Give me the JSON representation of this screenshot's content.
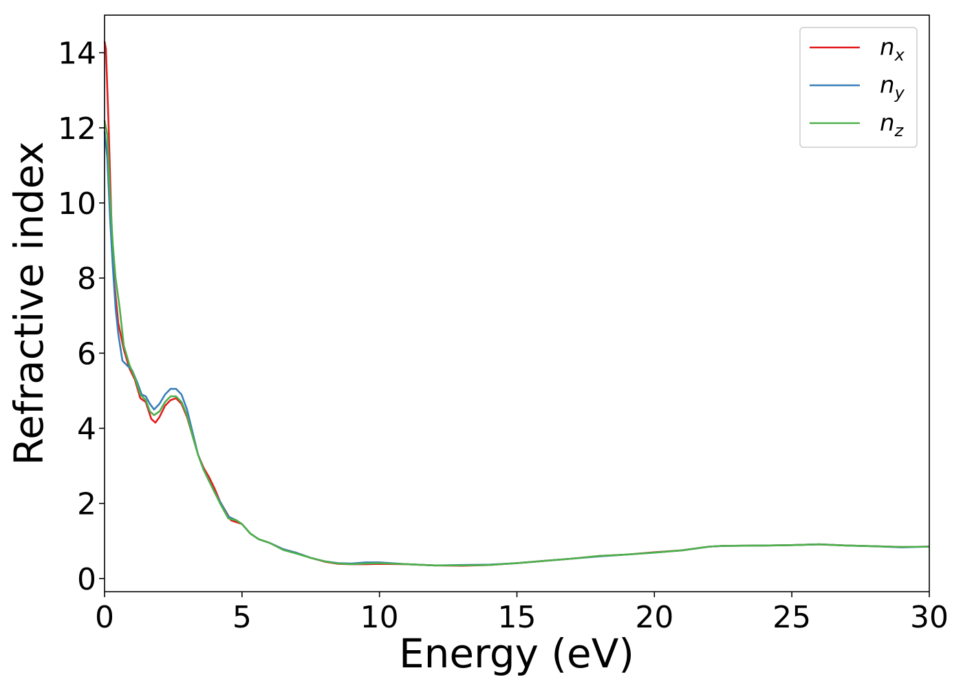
{
  "chart_data": {
    "type": "line",
    "title": "",
    "xlabel": "Energy (eV)",
    "ylabel": "Refractive index",
    "xlim": [
      0,
      30
    ],
    "ylim": [
      -0.35,
      15
    ],
    "xticks": [
      0,
      5,
      10,
      15,
      20,
      25,
      30
    ],
    "yticks": [
      0,
      2,
      4,
      6,
      8,
      10,
      12,
      14
    ],
    "grid": false,
    "legend_position": "top-right",
    "series": [
      {
        "name": "n",
        "subscript": "x",
        "color": "#e41a1c",
        "points": [
          [
            0,
            14.3
          ],
          [
            0.05,
            14.1
          ],
          [
            0.15,
            12.0
          ],
          [
            0.25,
            9.5
          ],
          [
            0.35,
            7.9
          ],
          [
            0.5,
            6.8
          ],
          [
            0.7,
            6.1
          ],
          [
            0.9,
            5.6
          ],
          [
            1.1,
            5.3
          ],
          [
            1.3,
            4.8
          ],
          [
            1.5,
            4.7
          ],
          [
            1.7,
            4.25
          ],
          [
            1.85,
            4.15
          ],
          [
            2.0,
            4.3
          ],
          [
            2.2,
            4.6
          ],
          [
            2.4,
            4.75
          ],
          [
            2.6,
            4.8
          ],
          [
            2.8,
            4.65
          ],
          [
            3.0,
            4.3
          ],
          [
            3.2,
            3.8
          ],
          [
            3.4,
            3.3
          ],
          [
            3.6,
            2.95
          ],
          [
            3.8,
            2.7
          ],
          [
            4.0,
            2.4
          ],
          [
            4.2,
            2.05
          ],
          [
            4.4,
            1.8
          ],
          [
            4.6,
            1.55
          ],
          [
            4.8,
            1.5
          ],
          [
            5.0,
            1.45
          ],
          [
            5.3,
            1.2
          ],
          [
            5.6,
            1.05
          ],
          [
            6.0,
            0.95
          ],
          [
            6.5,
            0.78
          ],
          [
            7.0,
            0.68
          ],
          [
            7.5,
            0.55
          ],
          [
            8.0,
            0.45
          ],
          [
            8.5,
            0.39
          ],
          [
            9.0,
            0.38
          ],
          [
            9.5,
            0.38
          ],
          [
            10.0,
            0.39
          ],
          [
            11.0,
            0.38
          ],
          [
            12.0,
            0.35
          ],
          [
            13.0,
            0.34
          ],
          [
            14.0,
            0.36
          ],
          [
            15.0,
            0.41
          ],
          [
            16.0,
            0.47
          ],
          [
            17.0,
            0.53
          ],
          [
            18.0,
            0.6
          ],
          [
            19.0,
            0.64
          ],
          [
            20.0,
            0.7
          ],
          [
            21.0,
            0.75
          ],
          [
            22.0,
            0.85
          ],
          [
            22.5,
            0.87
          ],
          [
            24.0,
            0.88
          ],
          [
            25.0,
            0.89
          ],
          [
            26.0,
            0.91
          ],
          [
            27.0,
            0.88
          ],
          [
            28.0,
            0.86
          ],
          [
            29.0,
            0.84
          ],
          [
            30.0,
            0.85
          ]
        ]
      },
      {
        "name": "n",
        "subscript": "y",
        "color": "#377eb8",
        "points": [
          [
            0,
            11.9
          ],
          [
            0.1,
            11.2
          ],
          [
            0.2,
            9.6
          ],
          [
            0.3,
            8.3
          ],
          [
            0.4,
            7.2
          ],
          [
            0.5,
            6.5
          ],
          [
            0.65,
            5.8
          ],
          [
            0.85,
            5.65
          ],
          [
            1.0,
            5.55
          ],
          [
            1.2,
            5.2
          ],
          [
            1.35,
            4.9
          ],
          [
            1.5,
            4.85
          ],
          [
            1.65,
            4.65
          ],
          [
            1.8,
            4.5
          ],
          [
            2.0,
            4.65
          ],
          [
            2.2,
            4.9
          ],
          [
            2.4,
            5.05
          ],
          [
            2.6,
            5.05
          ],
          [
            2.8,
            4.9
          ],
          [
            3.0,
            4.5
          ],
          [
            3.2,
            3.9
          ],
          [
            3.4,
            3.3
          ],
          [
            3.6,
            2.9
          ],
          [
            3.8,
            2.6
          ],
          [
            4.0,
            2.3
          ],
          [
            4.2,
            2.05
          ],
          [
            4.5,
            1.65
          ],
          [
            4.8,
            1.55
          ],
          [
            5.0,
            1.45
          ],
          [
            5.3,
            1.2
          ],
          [
            5.6,
            1.05
          ],
          [
            6.0,
            0.95
          ],
          [
            6.5,
            0.78
          ],
          [
            7.0,
            0.68
          ],
          [
            7.5,
            0.55
          ],
          [
            8.0,
            0.46
          ],
          [
            8.5,
            0.41
          ],
          [
            9.0,
            0.4
          ],
          [
            9.5,
            0.43
          ],
          [
            10.0,
            0.43
          ],
          [
            11.0,
            0.38
          ],
          [
            12.0,
            0.35
          ],
          [
            13.0,
            0.36
          ],
          [
            14.0,
            0.37
          ],
          [
            15.0,
            0.41
          ],
          [
            16.0,
            0.47
          ],
          [
            17.0,
            0.53
          ],
          [
            18.0,
            0.59
          ],
          [
            19.0,
            0.64
          ],
          [
            20.0,
            0.69
          ],
          [
            21.0,
            0.75
          ],
          [
            22.0,
            0.85
          ],
          [
            22.5,
            0.87
          ],
          [
            24.0,
            0.88
          ],
          [
            25.0,
            0.89
          ],
          [
            26.0,
            0.91
          ],
          [
            27.0,
            0.88
          ],
          [
            28.0,
            0.86
          ],
          [
            29.0,
            0.83
          ],
          [
            30.0,
            0.85
          ]
        ]
      },
      {
        "name": "n",
        "subscript": "z",
        "color": "#4daf4a",
        "points": [
          [
            0,
            12.2
          ],
          [
            0.1,
            11.8
          ],
          [
            0.2,
            10.2
          ],
          [
            0.3,
            8.9
          ],
          [
            0.4,
            8.0
          ],
          [
            0.55,
            7.2
          ],
          [
            0.7,
            6.2
          ],
          [
            0.9,
            5.7
          ],
          [
            1.1,
            5.35
          ],
          [
            1.3,
            4.9
          ],
          [
            1.5,
            4.75
          ],
          [
            1.65,
            4.45
          ],
          [
            1.8,
            4.35
          ],
          [
            2.0,
            4.45
          ],
          [
            2.2,
            4.7
          ],
          [
            2.4,
            4.85
          ],
          [
            2.6,
            4.85
          ],
          [
            2.8,
            4.7
          ],
          [
            3.0,
            4.35
          ],
          [
            3.2,
            3.8
          ],
          [
            3.4,
            3.3
          ],
          [
            3.6,
            2.9
          ],
          [
            3.8,
            2.6
          ],
          [
            4.0,
            2.3
          ],
          [
            4.2,
            2.0
          ],
          [
            4.5,
            1.6
          ],
          [
            4.8,
            1.55
          ],
          [
            5.0,
            1.45
          ],
          [
            5.3,
            1.2
          ],
          [
            5.6,
            1.05
          ],
          [
            6.0,
            0.95
          ],
          [
            6.5,
            0.76
          ],
          [
            7.0,
            0.66
          ],
          [
            7.5,
            0.55
          ],
          [
            8.0,
            0.46
          ],
          [
            8.5,
            0.4
          ],
          [
            9.0,
            0.38
          ],
          [
            9.5,
            0.4
          ],
          [
            10.0,
            0.41
          ],
          [
            11.0,
            0.38
          ],
          [
            12.0,
            0.35
          ],
          [
            13.0,
            0.35
          ],
          [
            14.0,
            0.36
          ],
          [
            15.0,
            0.41
          ],
          [
            16.0,
            0.47
          ],
          [
            17.0,
            0.53
          ],
          [
            18.0,
            0.6
          ],
          [
            19.0,
            0.64
          ],
          [
            20.0,
            0.69
          ],
          [
            21.0,
            0.75
          ],
          [
            22.0,
            0.85
          ],
          [
            22.5,
            0.87
          ],
          [
            24.0,
            0.88
          ],
          [
            25.0,
            0.89
          ],
          [
            26.0,
            0.91
          ],
          [
            27.0,
            0.88
          ],
          [
            28.0,
            0.86
          ],
          [
            29.0,
            0.84
          ],
          [
            30.0,
            0.85
          ]
        ]
      }
    ]
  }
}
